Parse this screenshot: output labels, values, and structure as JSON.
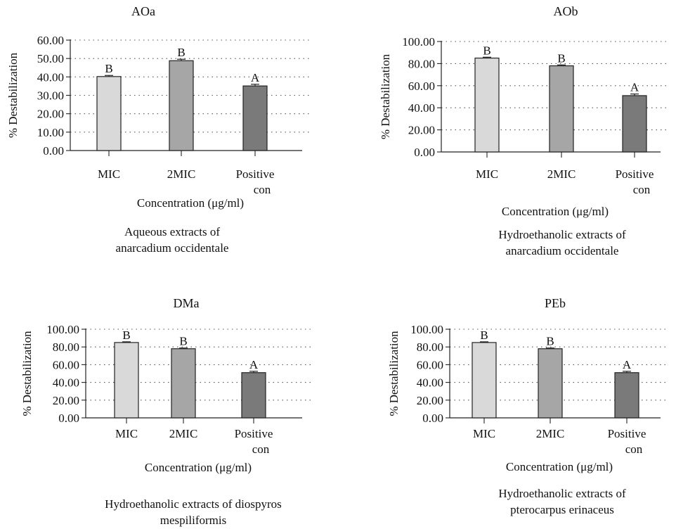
{
  "chart_data": [
    {
      "type": "bar",
      "title": "AOa",
      "categories": [
        "MIC",
        "2MIC",
        "Positive con"
      ],
      "category_lines": [
        [
          "MIC"
        ],
        [
          "2MIC"
        ],
        [
          "Positive",
          "con"
        ]
      ],
      "values": [
        40.2,
        48.8,
        35.1
      ],
      "errors": [
        0.6,
        0.8,
        0.9
      ],
      "letters": [
        "B",
        "B",
        "A"
      ],
      "bar_colors": [
        "#d9d9d9",
        "#a6a6a6",
        "#7a7a7a"
      ],
      "ylim": [
        0,
        60
      ],
      "yticks": [
        0,
        10,
        20,
        30,
        40,
        50,
        60
      ],
      "ytick_labels": [
        "0.00",
        "10.00",
        "20.00",
        "30.00",
        "40.00",
        "50.00",
        "60.00"
      ],
      "ylabel": "% Destabilization",
      "xlabel": "Concentration (μg/ml)",
      "grid": "dotted horizontal",
      "caption": [
        "Aqueous extracts of",
        "anarcadium occidentale"
      ]
    },
    {
      "type": "bar",
      "title": "AOb",
      "categories": [
        "MIC",
        "2MIC",
        "Positive con"
      ],
      "category_lines": [
        [
          "MIC"
        ],
        [
          "2MIC"
        ],
        [
          "Positive",
          "con"
        ]
      ],
      "values": [
        85.0,
        78.0,
        51.0
      ],
      "errors": [
        0.8,
        0.8,
        1.5
      ],
      "letters": [
        "B",
        "B",
        "A"
      ],
      "bar_colors": [
        "#d9d9d9",
        "#a6a6a6",
        "#7a7a7a"
      ],
      "ylim": [
        0,
        100
      ],
      "yticks": [
        0,
        20,
        40,
        60,
        80,
        100
      ],
      "ytick_labels": [
        "0.00",
        "20.00",
        "40.00",
        "60.00",
        "80.00",
        "100.00"
      ],
      "ylabel": "% Destabilization",
      "xlabel": "Concentration (μg/ml)",
      "grid": "dotted horizontal",
      "caption": [
        "Hydroethanolic extracts of",
        "anarcadium occidentale"
      ]
    },
    {
      "type": "bar",
      "title": "DMa",
      "categories": [
        "MIC",
        "2MIC",
        "Positive con"
      ],
      "category_lines": [
        [
          "MIC"
        ],
        [
          "2MIC"
        ],
        [
          "Positive",
          "con"
        ]
      ],
      "values": [
        85.0,
        78.0,
        51.0
      ],
      "errors": [
        0.8,
        0.8,
        1.5
      ],
      "letters": [
        "B",
        "B",
        "A"
      ],
      "bar_colors": [
        "#d9d9d9",
        "#a6a6a6",
        "#7a7a7a"
      ],
      "ylim": [
        0,
        100
      ],
      "yticks": [
        0,
        20,
        40,
        60,
        80,
        100
      ],
      "ytick_labels": [
        "0.00",
        "20.00",
        "40.00",
        "60.00",
        "80.00",
        "100.00"
      ],
      "ylabel": "% Destabilization",
      "xlabel": "Concentration (μg/ml)",
      "grid": "dotted horizontal",
      "caption": [
        "Hydroethanolic extracts of diospyros",
        "mespiliformis"
      ]
    },
    {
      "type": "bar",
      "title": "PEb",
      "categories": [
        "MIC",
        "2MIC",
        "Positive con"
      ],
      "category_lines": [
        [
          "MIC"
        ],
        [
          "2MIC"
        ],
        [
          "Positive",
          "con"
        ]
      ],
      "values": [
        85.0,
        78.0,
        51.0
      ],
      "errors": [
        0.8,
        0.8,
        1.5
      ],
      "letters": [
        "B",
        "B",
        "A"
      ],
      "bar_colors": [
        "#d9d9d9",
        "#a6a6a6",
        "#7a7a7a"
      ],
      "ylim": [
        0,
        100
      ],
      "yticks": [
        0,
        20,
        40,
        60,
        80,
        100
      ],
      "ytick_labels": [
        "0.00",
        "20.00",
        "40.00",
        "60.00",
        "80.00",
        "100.00"
      ],
      "ylabel": "% Destabilization",
      "xlabel": "Concentration (μg/ml)",
      "grid": "dotted horizontal",
      "caption": [
        "Hydroethanolic extracts of",
        "pterocarpus erinaceus"
      ]
    }
  ]
}
